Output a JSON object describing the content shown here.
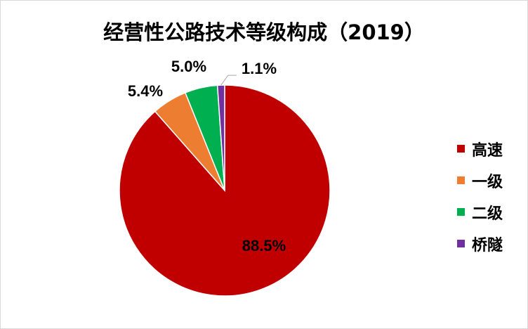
{
  "chart_data": {
    "type": "pie",
    "title": "经营性公路技术等级构成（2019）",
    "categories": [
      "高速",
      "一级",
      "二级",
      "桥隧"
    ],
    "values": [
      88.5,
      5.4,
      5.0,
      1.1
    ],
    "data_labels": [
      "88.5%",
      "5.4%",
      "5.0%",
      "1.1%"
    ],
    "colors": [
      "#C00000",
      "#ED7D31",
      "#00B050",
      "#7030A0"
    ],
    "start_angle": "12 o'clock",
    "direction": "clockwise",
    "legend": "right"
  }
}
